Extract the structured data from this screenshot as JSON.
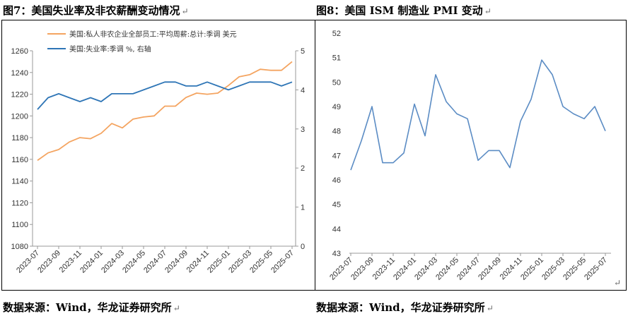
{
  "left": {
    "title": "图7：美国失业率及非农薪酬变动情况",
    "source": "数据来源：Wind，华龙证券研究所",
    "chart_data": {
      "type": "line",
      "x": [
        "2023-07",
        "2023-08",
        "2023-09",
        "2023-10",
        "2023-11",
        "2023-12",
        "2024-01",
        "2024-02",
        "2024-03",
        "2024-04",
        "2024-05",
        "2024-06",
        "2024-07",
        "2024-08",
        "2024-09",
        "2024-10",
        "2024-11",
        "2024-12",
        "2025-01",
        "2025-02",
        "2025-03",
        "2025-04",
        "2025-05",
        "2025-06",
        "2025-07"
      ],
      "x_tick_labels": [
        "2023-07",
        "2023-09",
        "2023-11",
        "2024-01",
        "2024-03",
        "2024-05",
        "2024-07",
        "2024-09",
        "2024-11",
        "2025-01",
        "2025-03",
        "2025-05",
        "2025-07"
      ],
      "series": [
        {
          "name": "美国:私人非农企业全部员工:平均周薪:总计:季调 美元",
          "axis": "left",
          "color": "#F4A460",
          "values": [
            1159,
            1166,
            1169,
            1176,
            1180,
            1179,
            1184,
            1193,
            1189,
            1197,
            1199,
            1200,
            1209,
            1209,
            1217,
            1221,
            1220,
            1221,
            1228,
            1236,
            1238,
            1243,
            1242,
            1242,
            1250
          ]
        },
        {
          "name": "美国:失业率:季调 %, 右轴",
          "axis": "right",
          "color": "#2E75B6",
          "values": [
            3.5,
            3.8,
            3.9,
            3.8,
            3.7,
            3.8,
            3.7,
            3.9,
            3.9,
            3.9,
            4.0,
            4.1,
            4.2,
            4.2,
            4.1,
            4.1,
            4.2,
            4.1,
            4.0,
            4.1,
            4.2,
            4.2,
            4.2,
            4.1,
            4.2
          ]
        }
      ],
      "y_left": {
        "min": 1080,
        "max": 1260,
        "ticks": [
          1080,
          1100,
          1120,
          1140,
          1160,
          1180,
          1200,
          1220,
          1240,
          1260
        ]
      },
      "y_right": {
        "min": 0,
        "max": 5,
        "ticks": [
          0,
          1,
          2,
          3,
          4,
          5
        ]
      },
      "legend": "top-left",
      "grid": false
    }
  },
  "right": {
    "title": "图8：美国 ISM 制造业 PMI 变动",
    "source": "数据来源：Wind，华龙证券研究所",
    "chart_data": {
      "type": "line",
      "x": [
        "2023-07",
        "2023-08",
        "2023-09",
        "2023-10",
        "2023-11",
        "2023-12",
        "2024-01",
        "2024-02",
        "2024-03",
        "2024-04",
        "2024-05",
        "2024-06",
        "2024-07",
        "2024-08",
        "2024-09",
        "2024-10",
        "2024-11",
        "2024-12",
        "2025-01",
        "2025-02",
        "2025-03",
        "2025-04",
        "2025-05",
        "2025-06",
        "2025-07"
      ],
      "x_tick_labels": [
        "2023-07",
        "2023-09",
        "2023-11",
        "2024-01",
        "2024-03",
        "2024-05",
        "2024-07",
        "2024-09",
        "2024-11",
        "2025-01",
        "2025-03",
        "2025-05",
        "2025-07"
      ],
      "series": [
        {
          "color": "#5B8CC4",
          "values": [
            46.4,
            47.6,
            49.0,
            46.7,
            46.7,
            47.1,
            49.1,
            47.8,
            50.3,
            49.2,
            48.7,
            48.5,
            46.8,
            47.2,
            47.2,
            46.5,
            48.4,
            49.3,
            50.9,
            50.3,
            49.0,
            48.7,
            48.5,
            49.0,
            48.0
          ]
        }
      ],
      "y": {
        "min": 43,
        "max": 52,
        "ticks": [
          43,
          44,
          45,
          46,
          47,
          48,
          49,
          50,
          51,
          52
        ]
      },
      "grid": false
    }
  },
  "return_mark": "↵"
}
